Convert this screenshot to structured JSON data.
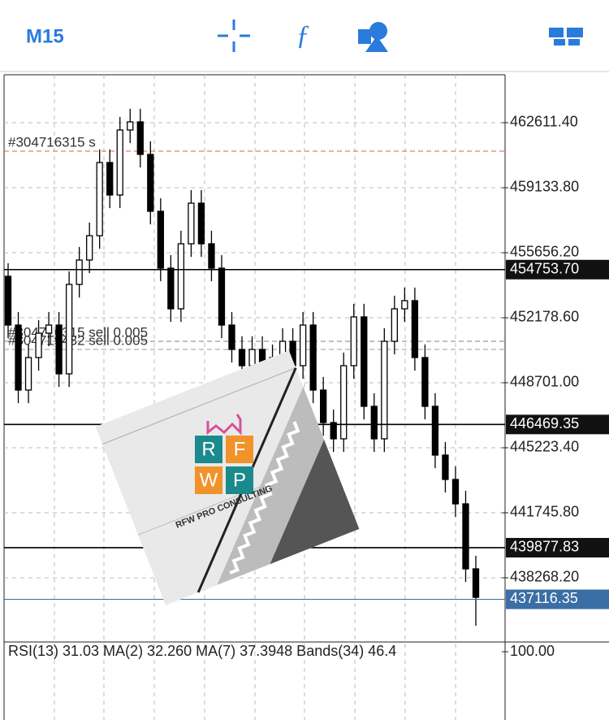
{
  "header": {
    "timeframe": "M15"
  },
  "chart_data": {
    "type": "candlestick",
    "open": [
      454396,
      451787,
      448310,
      450049,
      451353,
      451787,
      449179,
      453961,
      455265,
      456569,
      460481,
      458743,
      462220,
      462655,
      460916,
      457873,
      454830,
      452657,
      456134,
      458308,
      456134,
      454830,
      451787,
      450483,
      449614,
      450483,
      448745,
      450049,
      450918,
      449614,
      451787,
      448310,
      446571,
      445702,
      449614,
      452222,
      447440,
      445702,
      450918,
      452657,
      453092,
      450049,
      447440,
      444832,
      443528,
      442224,
      438746
    ],
    "high": [
      455096,
      452487,
      450749,
      452053,
      452487,
      452487,
      454661,
      455965,
      457269,
      461181,
      461181,
      462920,
      463355,
      463355,
      461616,
      458573,
      455530,
      456834,
      459008,
      459008,
      456834,
      455530,
      452487,
      451183,
      451183,
      451183,
      450749,
      451618,
      451618,
      452487,
      452487,
      449010,
      447271,
      450314,
      452922,
      452922,
      448140,
      451618,
      453357,
      453792,
      453792,
      450749,
      448140,
      445532,
      444228,
      442924,
      439446
    ],
    "low": [
      451087,
      447610,
      447610,
      449349,
      450653,
      448479,
      448479,
      453261,
      454565,
      455869,
      458043,
      458043,
      461520,
      460216,
      457173,
      454130,
      451957,
      451957,
      455434,
      455434,
      454130,
      451087,
      449783,
      448914,
      448914,
      448045,
      448045,
      449349,
      448914,
      448914,
      447610,
      445871,
      445002,
      445002,
      448914,
      446740,
      445002,
      445002,
      450218,
      451957,
      449349,
      446740,
      444132,
      442828,
      441524,
      438046,
      435703
    ],
    "close": [
      451787,
      448310,
      450049,
      451353,
      451787,
      449179,
      453961,
      455265,
      456569,
      460481,
      458743,
      462220,
      462655,
      460916,
      457873,
      454830,
      452657,
      456134,
      458308,
      456134,
      454830,
      451787,
      450483,
      449614,
      450483,
      448745,
      450049,
      450918,
      449614,
      451787,
      448310,
      446571,
      445702,
      449614,
      452222,
      447440,
      445702,
      450918,
      452657,
      453092,
      450049,
      447440,
      444832,
      443528,
      442224,
      438746,
      437225
    ],
    "ylim": [
      434834,
      465176
    ],
    "yticks": [
      {
        "value": 462611.4,
        "label": "462611.40"
      },
      {
        "value": 459133.8,
        "label": "459133.80"
      },
      {
        "value": 455656.2,
        "label": "455656.20"
      },
      {
        "value": 452178.6,
        "label": "452178.60"
      },
      {
        "value": 448701,
        "label": "448701.00"
      },
      {
        "value": 445223.4,
        "label": "445223.40"
      },
      {
        "value": 441745.8,
        "label": "441745.80"
      },
      {
        "value": 438268.2,
        "label": "438268.20"
      }
    ],
    "grid": true,
    "levels": [
      {
        "value": 454753.7,
        "label": "454753.70"
      },
      {
        "value": 446469.35,
        "label": "446469.35"
      },
      {
        "value": 439877.83,
        "label": "439877.83"
      }
    ],
    "current_price": {
      "value": 437116.35,
      "label": "437116.35",
      "color": "#3a6ea5"
    },
    "orders": [
      {
        "label": "#304716315 s",
        "value": 461090,
        "color": "#e0603c"
      },
      {
        "label": "#304716315 sell 0.005",
        "value": 450918,
        "color": "#5f9a5f"
      },
      {
        "label": "#304719432 sell 0.005",
        "value": 450483,
        "color": "#999999"
      }
    ]
  },
  "indicator": {
    "label": "RSI(13) 31.03 MA(2) 32.260 MA(7) 37.3948 Bands(34) 46.4",
    "tick": {
      "value": 100,
      "label": "100.00"
    }
  },
  "overlay": {
    "letters": [
      "R",
      "F",
      "W",
      "P"
    ],
    "caption": "RFW PRO CONSULTING"
  }
}
